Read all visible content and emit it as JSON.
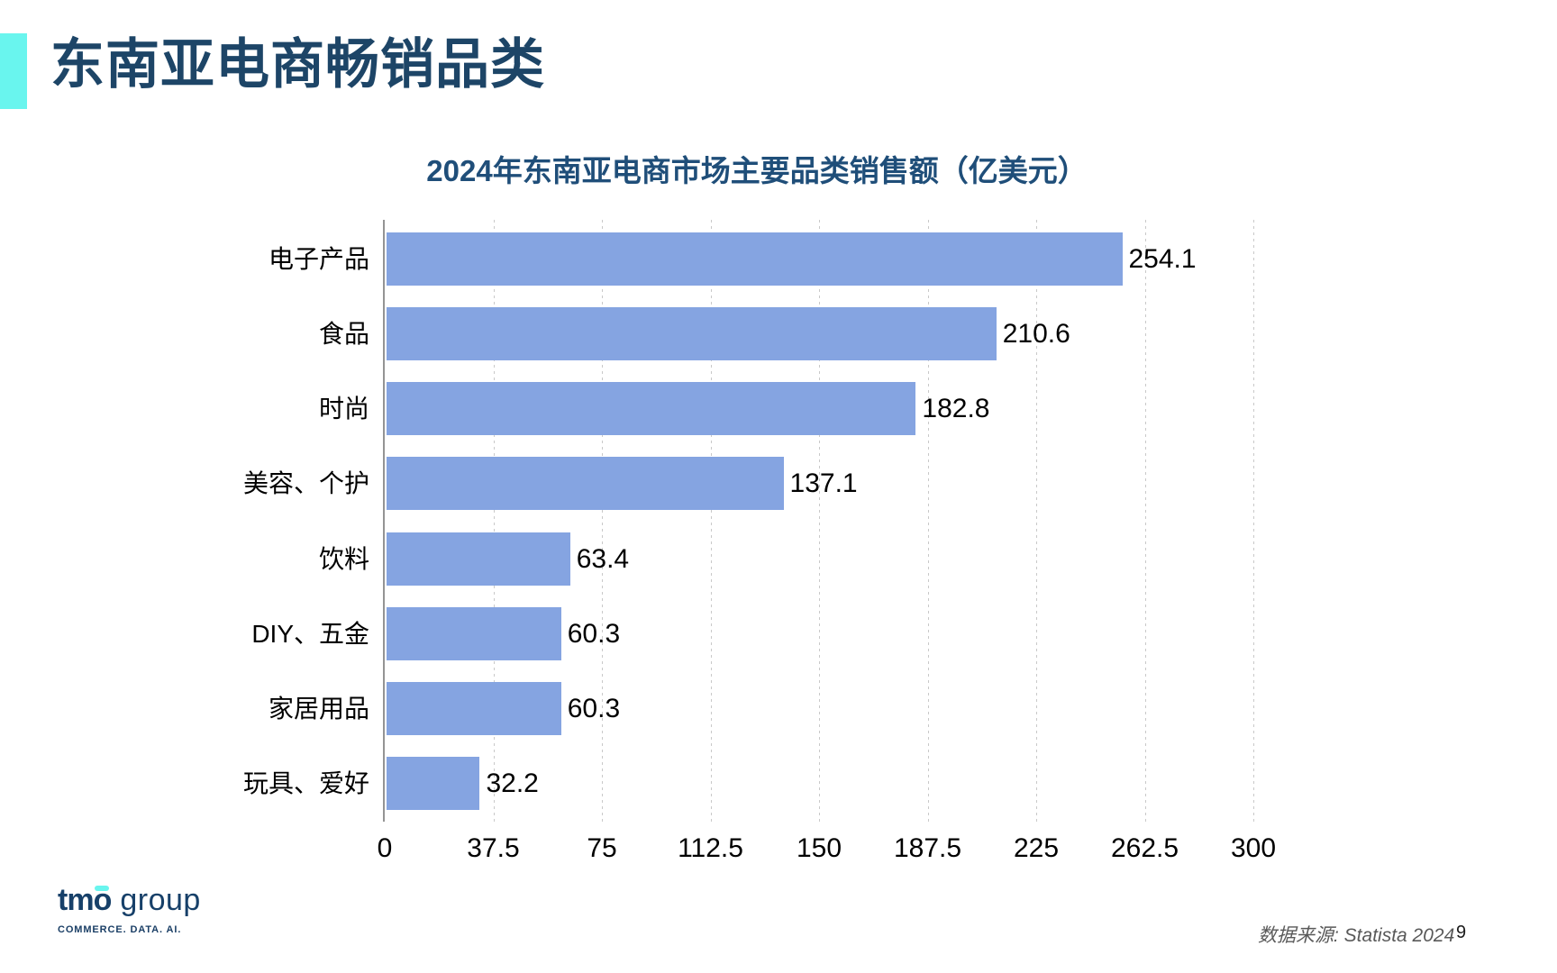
{
  "page": {
    "title": "东南亚电商畅销品类",
    "source": "数据来源: Statista 2024",
    "page_number": "9"
  },
  "logo": {
    "name_bold": "tm",
    "name_o": "o",
    "name_light": "group",
    "tagline": "COMMERCE. DATA. AI."
  },
  "colors": {
    "accent_cyan": "#69f5ee",
    "title_navy": "#1d4567",
    "chart_title_navy": "#1f4e79",
    "bar_blue": "#85a4e1",
    "axis_gray": "#949494",
    "gridline_gray": "#c9c9c9",
    "source_gray": "#595959"
  },
  "chart_data": {
    "type": "bar",
    "orientation": "horizontal",
    "title": "2024年东南亚电商市场主要品类销售额（亿美元）",
    "categories": [
      "电子产品",
      "食品",
      "时尚",
      "美容、个护",
      "饮料",
      "DIY、五金",
      "家居用品",
      "玩具、爱好"
    ],
    "values": [
      254.1,
      210.6,
      182.8,
      137.1,
      63.4,
      60.3,
      60.3,
      32.2
    ],
    "x_ticks": [
      0,
      37.5,
      75,
      112.5,
      150,
      187.5,
      225,
      262.5,
      300
    ],
    "xlim": [
      0,
      300
    ],
    "grid": true,
    "value_labels": true,
    "legend": false
  }
}
